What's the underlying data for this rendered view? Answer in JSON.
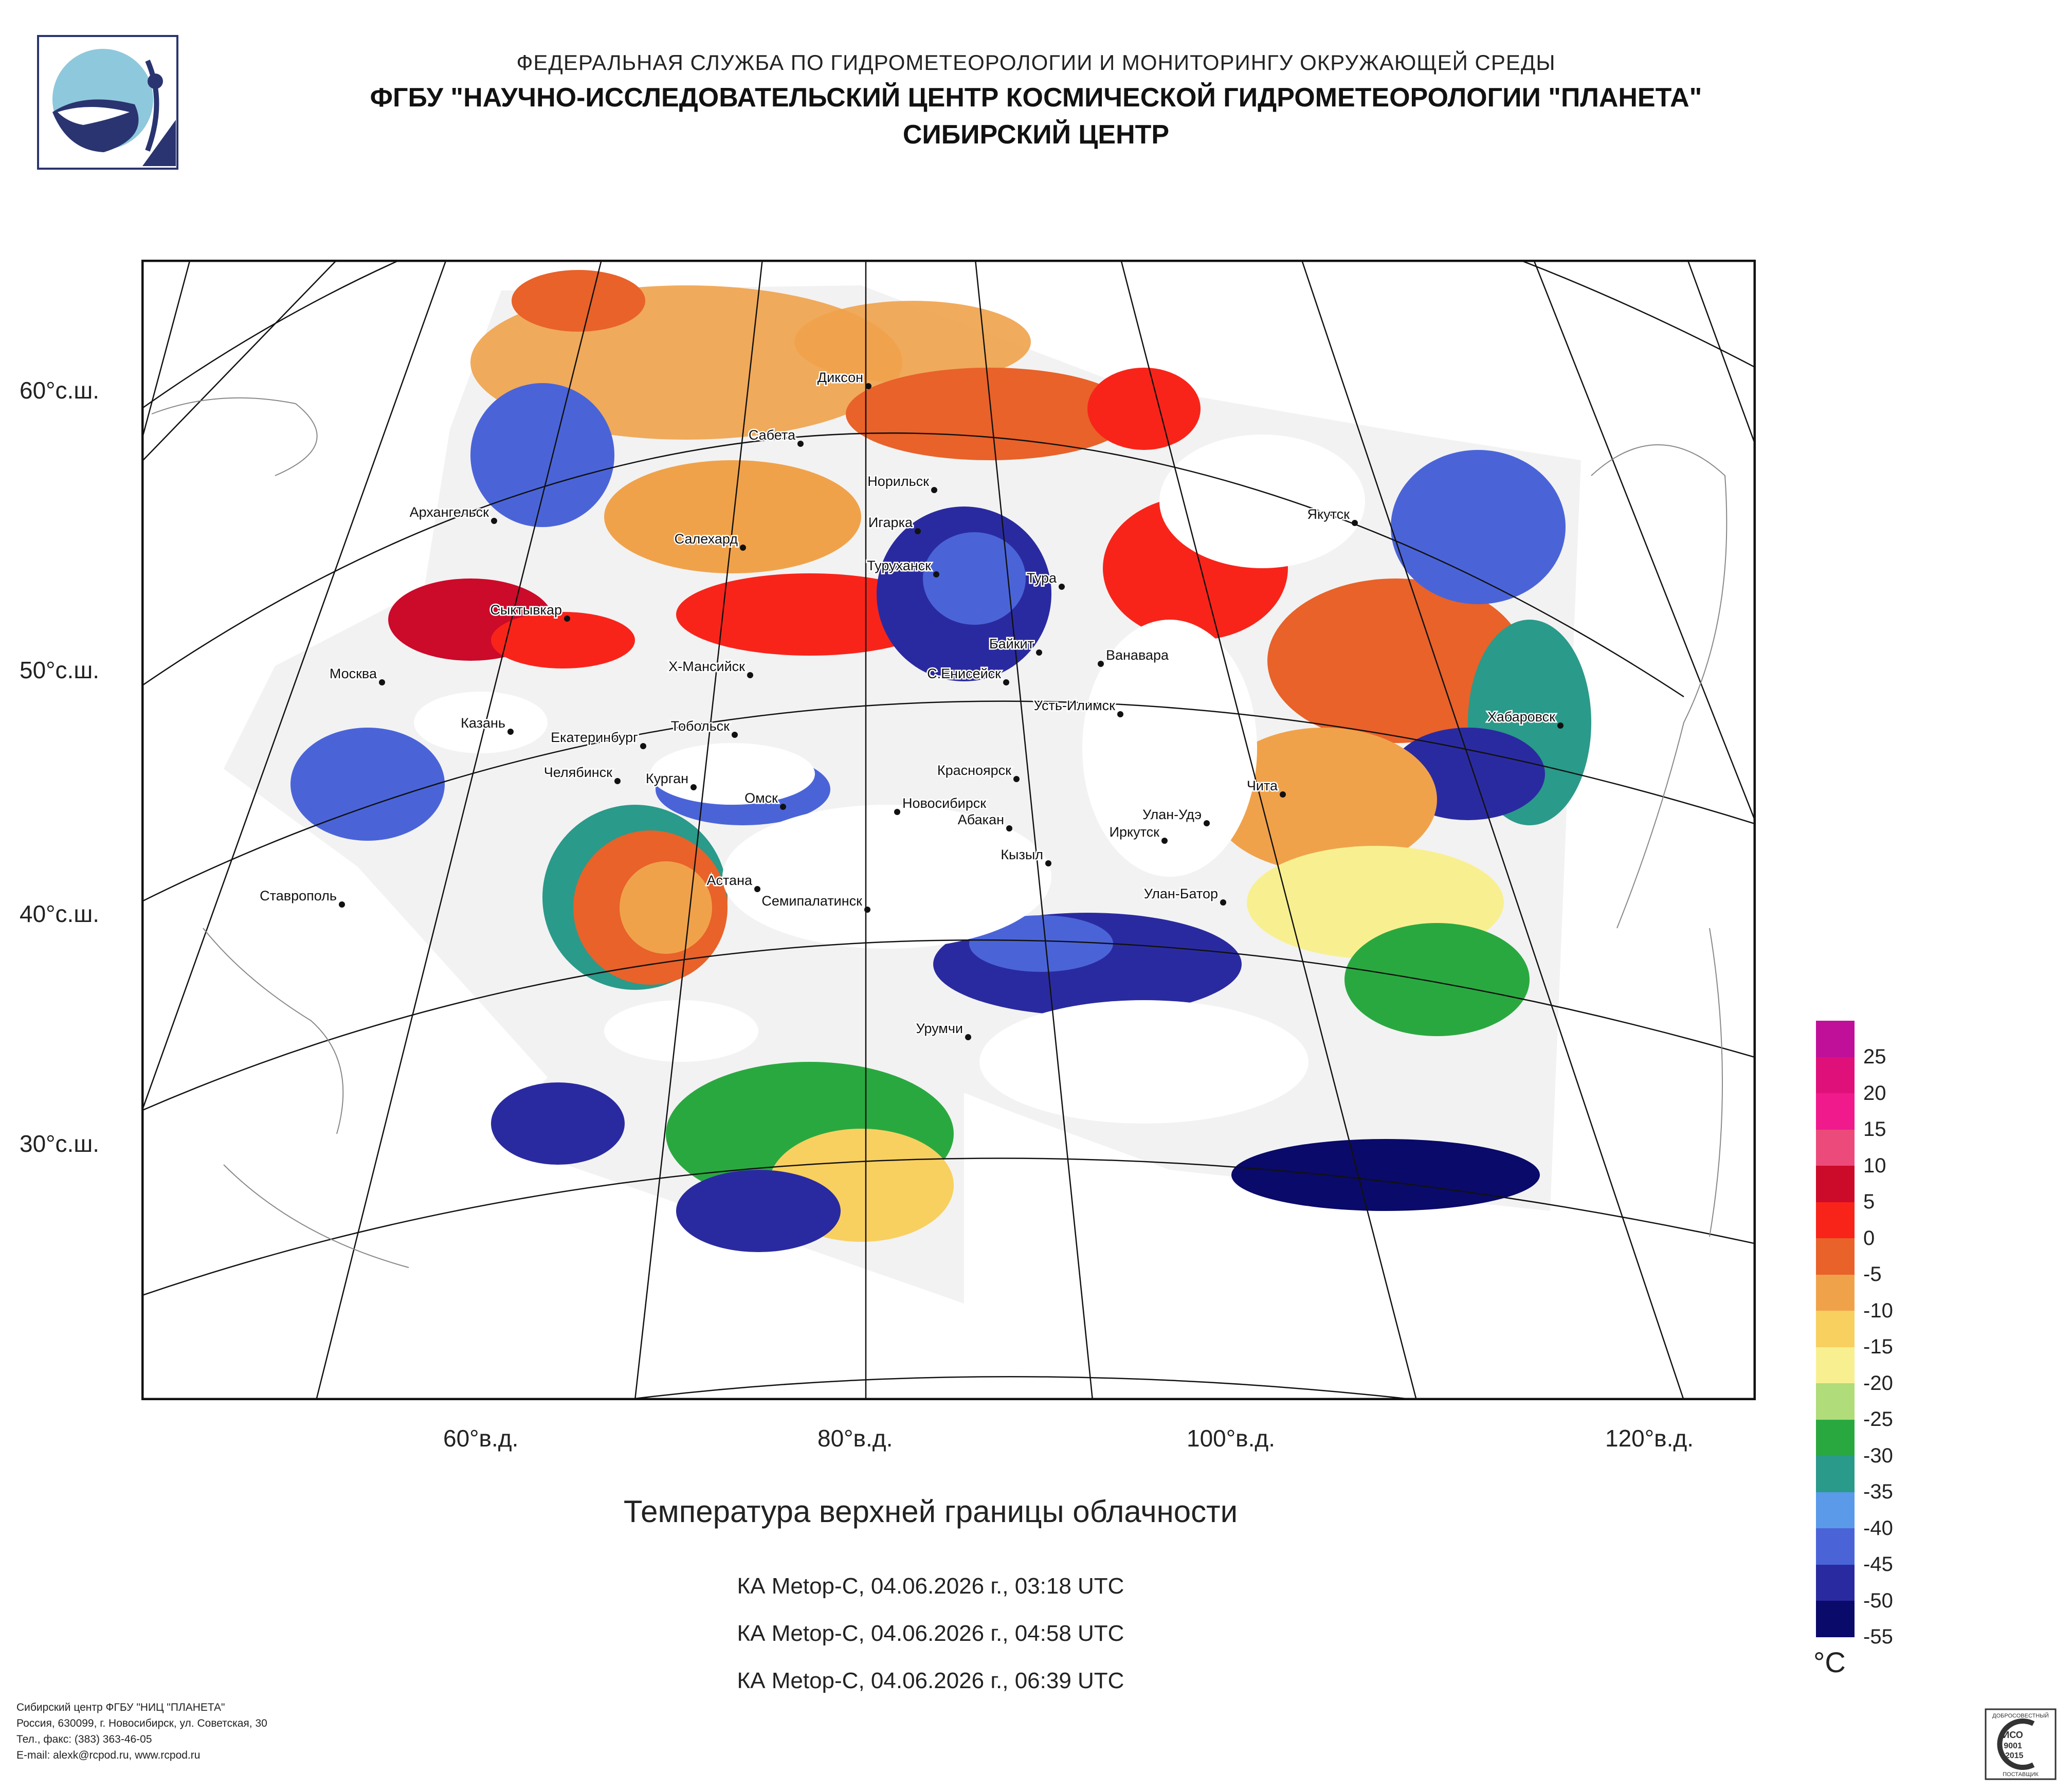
{
  "header": {
    "line1": "ФЕДЕРАЛЬНАЯ СЛУЖБА ПО ГИДРОМЕТЕОРОЛОГИИ И МОНИТОРИНГУ ОКРУЖАЮЩЕЙ СРЕДЫ",
    "line2": "ФГБУ \"НАУЧНО-ИССЛЕДОВАТЕЛЬСКИЙ ЦЕНТР КОСМИЧЕСКОЙ ГИДРОМЕТЕОРОЛОГИИ \"ПЛАНЕТА\"",
    "line3": "СИБИРСКИЙ ЦЕНТР"
  },
  "map": {
    "lat_labels": [
      "60°с.ш.",
      "50°с.ш.",
      "40°с.ш.",
      "30°с.ш."
    ],
    "lon_labels": [
      "60°в.д.",
      "80°в.д.",
      "100°в.д.",
      "120°в.д."
    ],
    "cities": [
      "Диксон",
      "Сабета",
      "Норильск",
      "Игарка",
      "Туруханск",
      "Архангельск",
      "Салехард",
      "Сыктывкар",
      "Тура",
      "Якутск",
      "Байкит",
      "Ванавара",
      "Х-Мансийск",
      "С.Енисейск",
      "Москва",
      "Усть-Илимск",
      "Хабаровск",
      "Казань",
      "Екатеринбург",
      "Тобольск",
      "Челябинск",
      "Курган",
      "Омск",
      "Новосибирск",
      "Красноярск",
      "Абакан",
      "Улан-Удэ",
      "Иркутск",
      "Чита",
      "Кызыл",
      "Астана",
      "Семипалатинск",
      "Улан-Батор",
      "Ставрополь",
      "Урумчи"
    ]
  },
  "title": "Температура верхней границы облачности",
  "passes": [
    "КА Metop-C, 04.06.2026 г., 03:18 UTC",
    "КА Metop-C, 04.06.2026 г., 04:58 UTC",
    "КА Metop-C, 04.06.2026 г., 06:39 UTC"
  ],
  "legend": {
    "unit": "°C",
    "labels": [
      "25",
      "20",
      "15",
      "10",
      "5",
      "0",
      "-5",
      "-10",
      "-15",
      "-20",
      "-25",
      "-30",
      "-35",
      "-40",
      "-45",
      "-50",
      "-55"
    ],
    "colors": [
      "#c0109a",
      "#e0107a",
      "#f01a8c",
      "#ec4a7a",
      "#cc0a2a",
      "#f8241a",
      "#e8622a",
      "#f0a24a",
      "#f8d060",
      "#f8f090",
      "#b0dc7a",
      "#2aa840",
      "#2a9a8a",
      "#5a9ae8",
      "#4a64d8",
      "#2a2aa0",
      "#0a0a6a"
    ]
  },
  "footer": {
    "line1": "Сибирский центр ФГБУ \"НИЦ \"ПЛАНЕТА\"",
    "line2": "Россия, 630099, г. Новосибирск, ул. Советская, 30",
    "line3": "Тел., факс: (383) 363-46-05",
    "line4": "E-mail: alexk@rcpod.ru, www.rcpod.ru"
  },
  "certificate": {
    "top": "ДОБРОСОВЕСТНЫЙ",
    "line1": "ИСО",
    "line2": "9001",
    "line3": "-2015",
    "bottom": "ПОСТАВЩИК"
  }
}
